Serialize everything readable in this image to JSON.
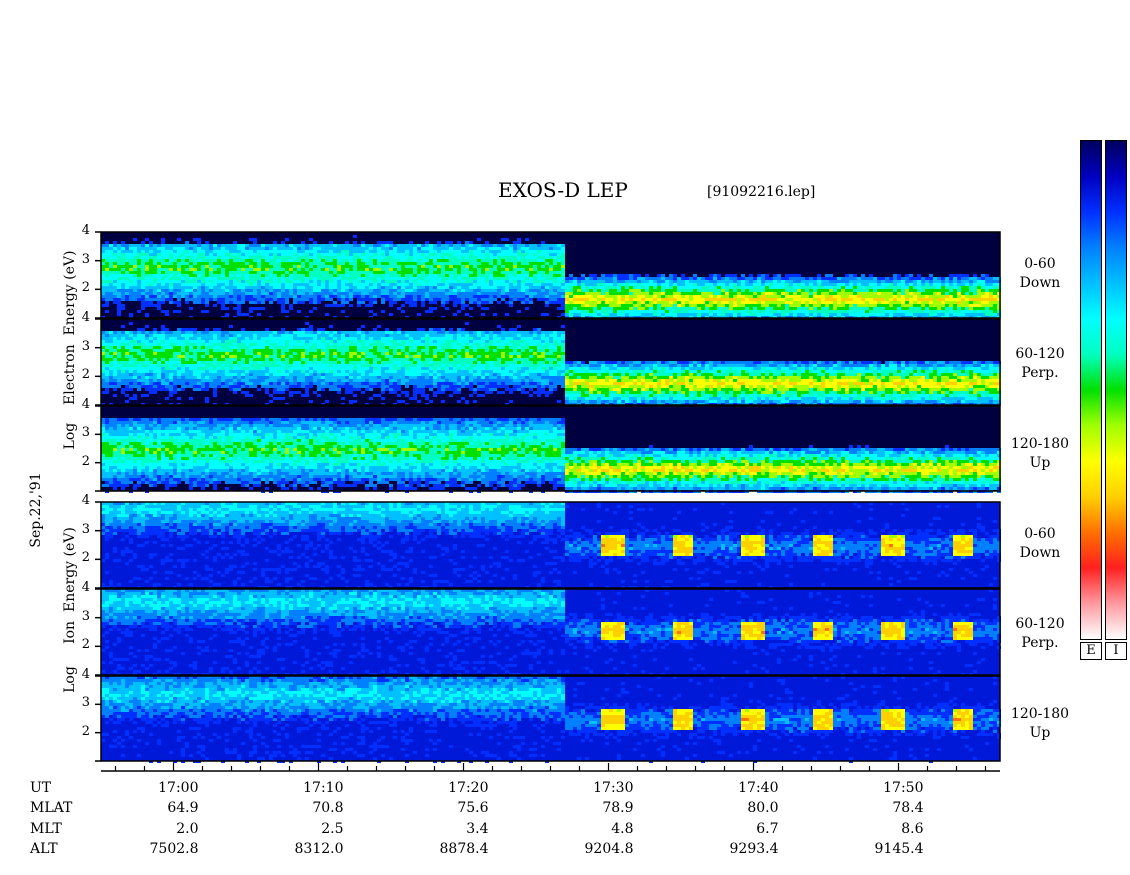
{
  "title": "EXOS-D LEP",
  "filename": "[91092216.lep]",
  "date_label": "Sep.22,'91",
  "colors": {
    "colorscale": [
      "#ffffff",
      "#ff9aa0",
      "#ff2020",
      "#ff7000",
      "#ffd000",
      "#ffff00",
      "#a0ff00",
      "#00e000",
      "#00ffc0",
      "#00ffff",
      "#00c0ff",
      "#0080ff",
      "#0030ff",
      "#0000c0",
      "#000060"
    ]
  },
  "colorbar_labels": [
    "E",
    "I"
  ],
  "electron_axis_label": {
    "line1": "Log",
    "line2": "Electron",
    "line3": "Energy",
    "line4": "(eV)"
  },
  "ion_axis_label": {
    "line1": "Log",
    "line2": "Ion",
    "line3": "Energy",
    "line4": "(eV)"
  },
  "panels": [
    {
      "species": "Electron",
      "band_line1": "0-60",
      "band_line2": "Down",
      "ticks": [
        "4",
        "3",
        "2"
      ]
    },
    {
      "species": "Electron",
      "band_line1": "60-120",
      "band_line2": "Perp.",
      "ticks": [
        "4",
        "3",
        "2"
      ]
    },
    {
      "species": "Electron",
      "band_line1": "120-180",
      "band_line2": "Up",
      "ticks": [
        "4",
        "3",
        "2"
      ]
    },
    {
      "species": "Ion",
      "band_line1": "0-60",
      "band_line2": "Down",
      "ticks": [
        "4",
        "3",
        "2"
      ]
    },
    {
      "species": "Ion",
      "band_line1": "60-120",
      "band_line2": "Perp.",
      "ticks": [
        "4",
        "3",
        "2"
      ]
    },
    {
      "species": "Ion",
      "band_line1": "120-180",
      "band_line2": "Up",
      "ticks": [
        "4",
        "3",
        "2"
      ]
    }
  ],
  "time_axis": {
    "row_labels": [
      "UT",
      "MLAT",
      "MLT",
      "ALT"
    ],
    "columns": [
      {
        "UT": "17:00",
        "MLAT": "64.9",
        "MLT": "2.0",
        "ALT": "7502.8"
      },
      {
        "UT": "17:10",
        "MLAT": "70.8",
        "MLT": "2.5",
        "ALT": "8312.0"
      },
      {
        "UT": "17:20",
        "MLAT": "75.6",
        "MLT": "3.4",
        "ALT": "8878.4"
      },
      {
        "UT": "17:30",
        "MLAT": "78.9",
        "MLT": "4.8",
        "ALT": "9204.8"
      },
      {
        "UT": "17:40",
        "MLAT": "80.0",
        "MLT": "6.7",
        "ALT": "9293.4"
      },
      {
        "UT": "17:50",
        "MLAT": "78.4",
        "MLT": "8.6",
        "ALT": "9145.4"
      }
    ]
  },
  "chart_data": {
    "type": "heatmap",
    "title": "EXOS-D LEP",
    "xlabel": "UT",
    "ylabel": "Log Energy (eV)",
    "x_range_minutes_after_1700": [
      -5,
      57
    ],
    "ylim": [
      1,
      4
    ],
    "y_ticks": [
      2,
      3,
      4
    ],
    "x_ticks": [
      "17:00",
      "17:10",
      "17:20",
      "17:30",
      "17:40",
      "17:50"
    ],
    "series": [
      {
        "name": "0-60 Down",
        "species": "Electron",
        "peak_log_energy_before_1727": 2.8,
        "peak_log_energy_after_1728": 1.7
      },
      {
        "name": "60-120 Perp.",
        "species": "Electron",
        "peak_log_energy_before_1727": 2.8,
        "peak_log_energy_after_1728": 1.8
      },
      {
        "name": "120-180 Up",
        "species": "Electron",
        "peak_log_energy_before_1727": 2.5,
        "peak_log_energy_after_1728": 1.8
      },
      {
        "name": "0-60 Down",
        "species": "Ion",
        "peak_log_energy_before_1727": 3.8,
        "peak_log_energy_after_1728": 2.5
      },
      {
        "name": "60-120 Perp.",
        "species": "Ion",
        "peak_log_energy_before_1727": 3.6,
        "peak_log_energy_after_1728": 2.6
      },
      {
        "name": "120-180 Up",
        "species": "Ion",
        "peak_log_energy_before_1727": 3.4,
        "peak_log_energy_after_1728": 2.5
      }
    ]
  }
}
